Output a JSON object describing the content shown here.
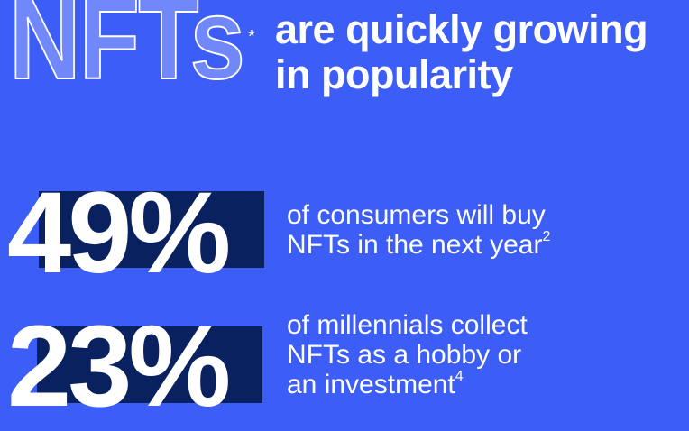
{
  "title": {
    "logo_word": "NFTs",
    "asterisk": "*",
    "line1": "are quickly growing",
    "line2": "in popularity"
  },
  "stats": [
    {
      "value": "49%",
      "lines": [
        "of consumers will buy",
        "NFTs in the next year"
      ],
      "footnote": "2"
    },
    {
      "value": "23%",
      "lines": [
        "of millennials collect",
        "NFTs as a hobby or",
        "an investment"
      ],
      "footnote": "4"
    }
  ],
  "colors": {
    "background": "#3d5ef6",
    "highlight_box": "#0a2160",
    "text": "#ffffff"
  }
}
